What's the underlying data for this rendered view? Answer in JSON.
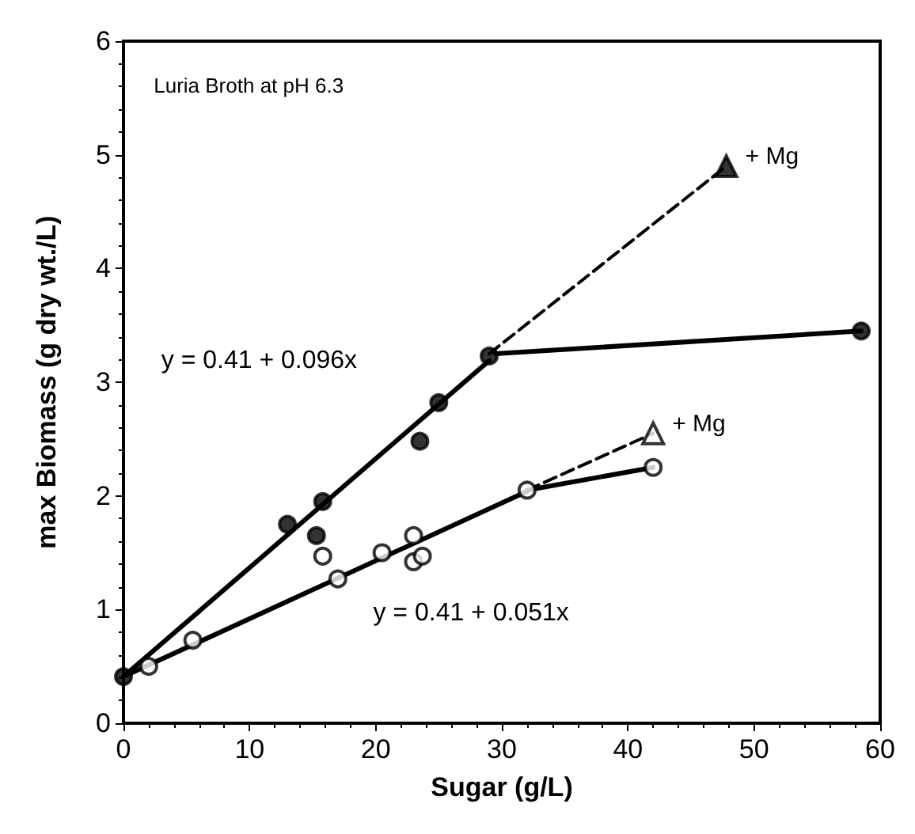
{
  "chart_data": {
    "type": "scatter",
    "xlabel": "Sugar (g/L)",
    "ylabel": "max Biomass (g dry wt./L)",
    "xlim": [
      0,
      60
    ],
    "xticks": [
      0,
      10,
      20,
      30,
      40,
      50,
      60
    ],
    "ylim": [
      0,
      6
    ],
    "yticks": [
      0,
      1,
      2,
      3,
      4,
      5,
      6
    ],
    "grid": false,
    "annotations": [
      "Luria Broth at pH 6.3",
      "y = 0.41 + 0.096x",
      "y = 0.41 + 0.051x",
      {
        "text": "+ Mg",
        "x": 47.8,
        "y": 4.9
      },
      {
        "text": "+ Mg",
        "x": 42,
        "y": 2.55
      }
    ],
    "series": [
      {
        "marker": "circle",
        "color": "#000000",
        "x": [
          0,
          13,
          15.8,
          15.3,
          23.5,
          25,
          29,
          58.5
        ],
        "values": [
          0.41,
          1.75,
          1.95,
          1.65,
          2.48,
          2.82,
          3.23,
          3.45
        ]
      },
      {
        "marker": "circle",
        "color": "#ffffff",
        "x": [
          2,
          5.5,
          15.8,
          17,
          20.5,
          23,
          23,
          23.7,
          32,
          42
        ],
        "values": [
          0.5,
          0.73,
          1.47,
          1.27,
          1.5,
          1.65,
          1.42,
          1.47,
          2.05,
          2.25
        ]
      },
      {
        "marker": "triangle",
        "color": "#000000",
        "x": [
          47.8
        ],
        "values": [
          4.9
        ]
      },
      {
        "marker": "triangle",
        "color": "#ffffff",
        "x": [
          42
        ],
        "values": [
          2.55
        ]
      },
      {
        "type": "line",
        "marker": "none",
        "line_style": "solid",
        "color": "#000000",
        "x": [
          0,
          29
        ],
        "values": [
          0.41,
          3.19
        ]
      },
      {
        "type": "line",
        "marker": "none",
        "line_style": "solid",
        "color": "#000000",
        "x": [
          29.5,
          58.5
        ],
        "values": [
          3.25,
          3.45
        ]
      },
      {
        "type": "line",
        "marker": "none",
        "line_style": "dashed",
        "color": "#000000",
        "x": [
          29,
          47.8
        ],
        "values": [
          3.25,
          4.9
        ]
      },
      {
        "type": "line",
        "marker": "none",
        "line_style": "solid",
        "color": "#000000",
        "x": [
          0,
          32
        ],
        "values": [
          0.41,
          2.04
        ]
      },
      {
        "type": "line",
        "marker": "none",
        "line_style": "solid",
        "color": "#000000",
        "x": [
          32,
          42
        ],
        "values": [
          2.05,
          2.25
        ]
      },
      {
        "type": "line",
        "marker": "none",
        "line_style": "dashed",
        "color": "#000000",
        "x": [
          32,
          42
        ],
        "values": [
          2.05,
          2.55
        ]
      }
    ]
  }
}
